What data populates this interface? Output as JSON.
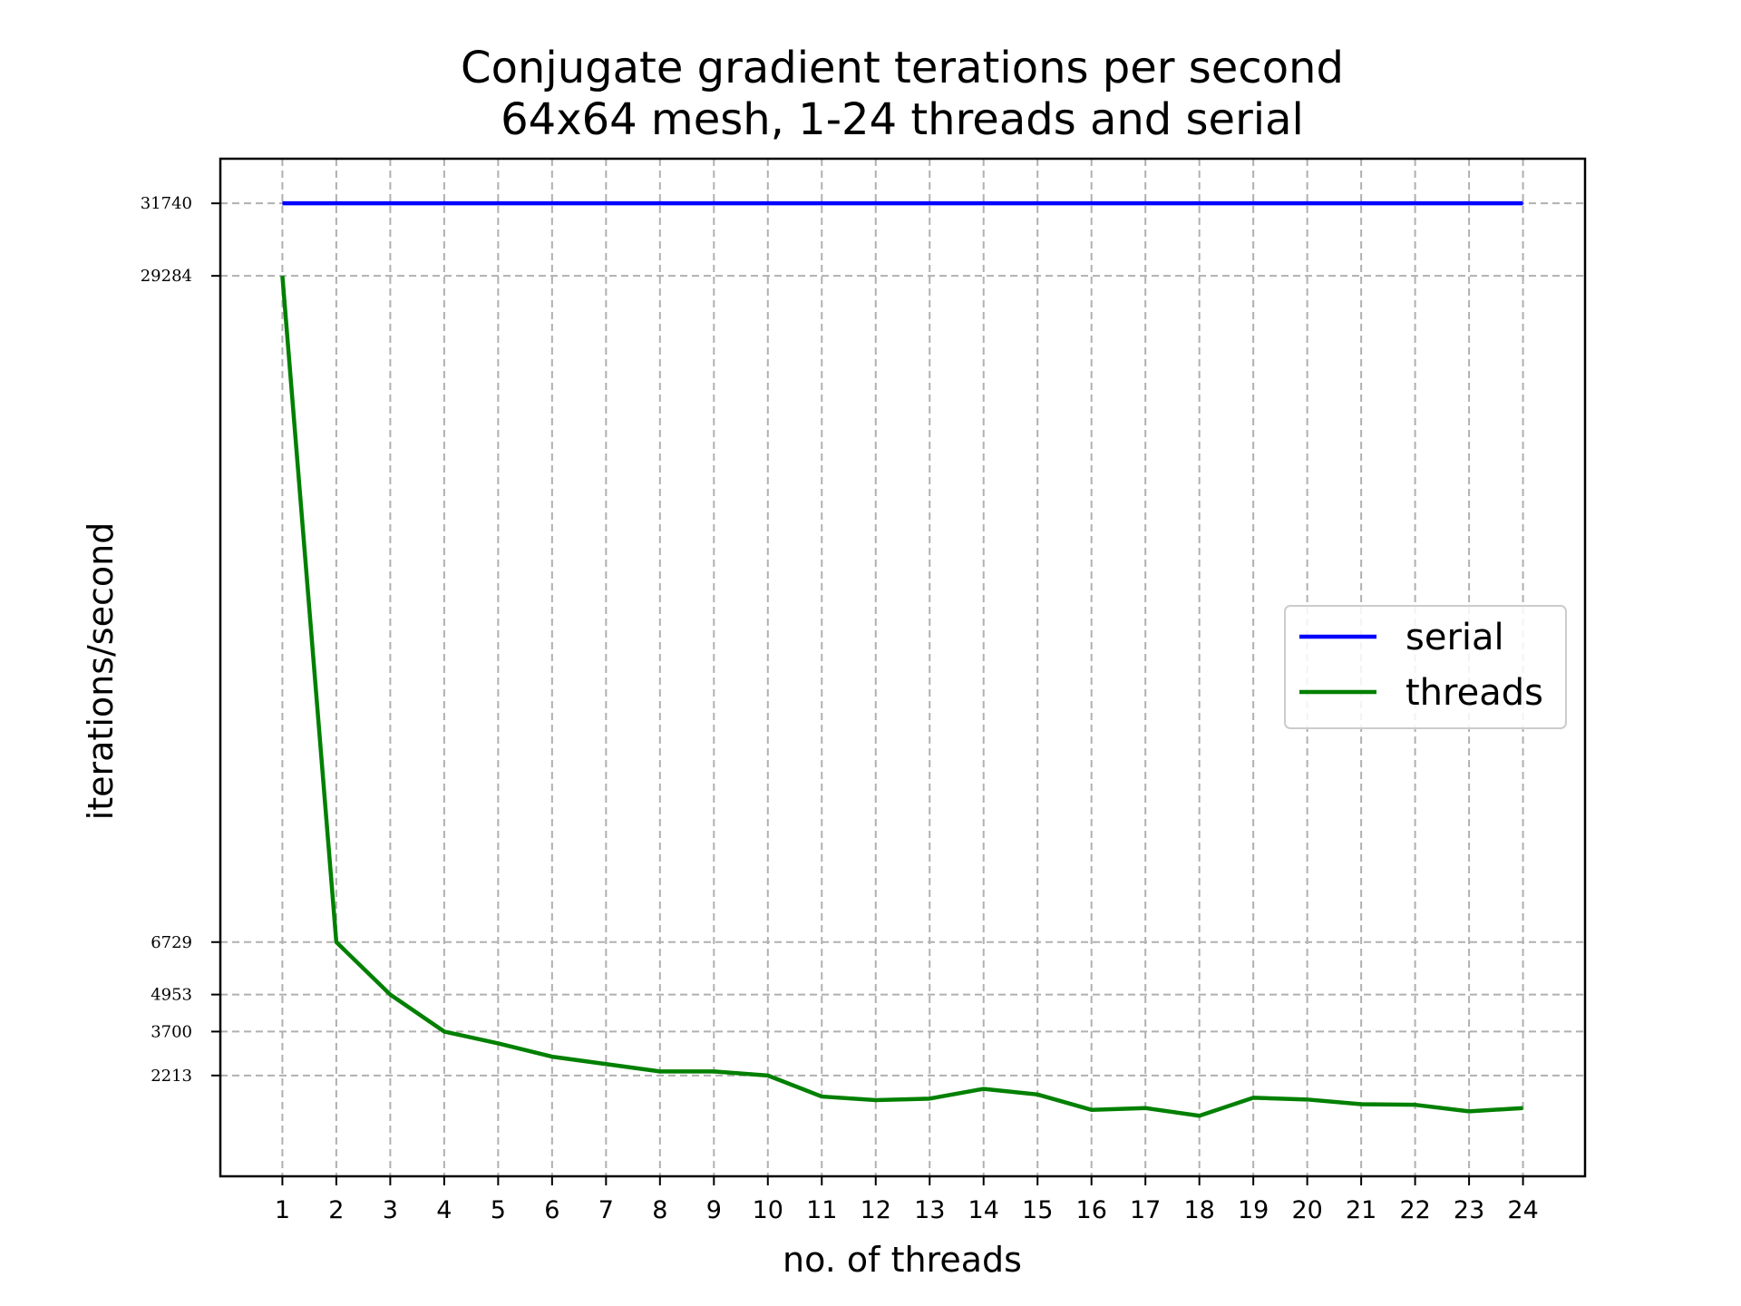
{
  "chart_data": {
    "type": "line",
    "title": [
      "Conjugate gradient terations per second",
      "64x64 mesh, 1-24 threads and serial"
    ],
    "xlabel": "no. of threads",
    "ylabel": "iterations/second",
    "x": [
      1,
      2,
      3,
      4,
      5,
      6,
      7,
      8,
      9,
      10,
      11,
      12,
      13,
      14,
      15,
      16,
      17,
      18,
      19,
      20,
      21,
      22,
      23,
      24
    ],
    "yticks": [
      31740,
      29284,
      6729,
      4953,
      3700,
      2213
    ],
    "xlim": [
      -0.15,
      25.15
    ],
    "ylim": [
      -1200,
      33250
    ],
    "grid": true,
    "legend_position": "center-right",
    "series": [
      {
        "name": "serial",
        "color": "#0000ff",
        "values": [
          31740,
          31740,
          31740,
          31740,
          31740,
          31740,
          31740,
          31740,
          31740,
          31740,
          31740,
          31740,
          31740,
          31740,
          31740,
          31740,
          31740,
          31740,
          31740,
          31740,
          31740,
          31740,
          31740,
          31740
        ]
      },
      {
        "name": "threads",
        "color": "#008000",
        "values": [
          29284,
          6729,
          4953,
          3700,
          3300,
          2850,
          2600,
          2350,
          2350,
          2213,
          1500,
          1380,
          1430,
          1760,
          1570,
          1050,
          1110,
          850,
          1460,
          1400,
          1240,
          1220,
          1000,
          1110
        ]
      }
    ]
  }
}
